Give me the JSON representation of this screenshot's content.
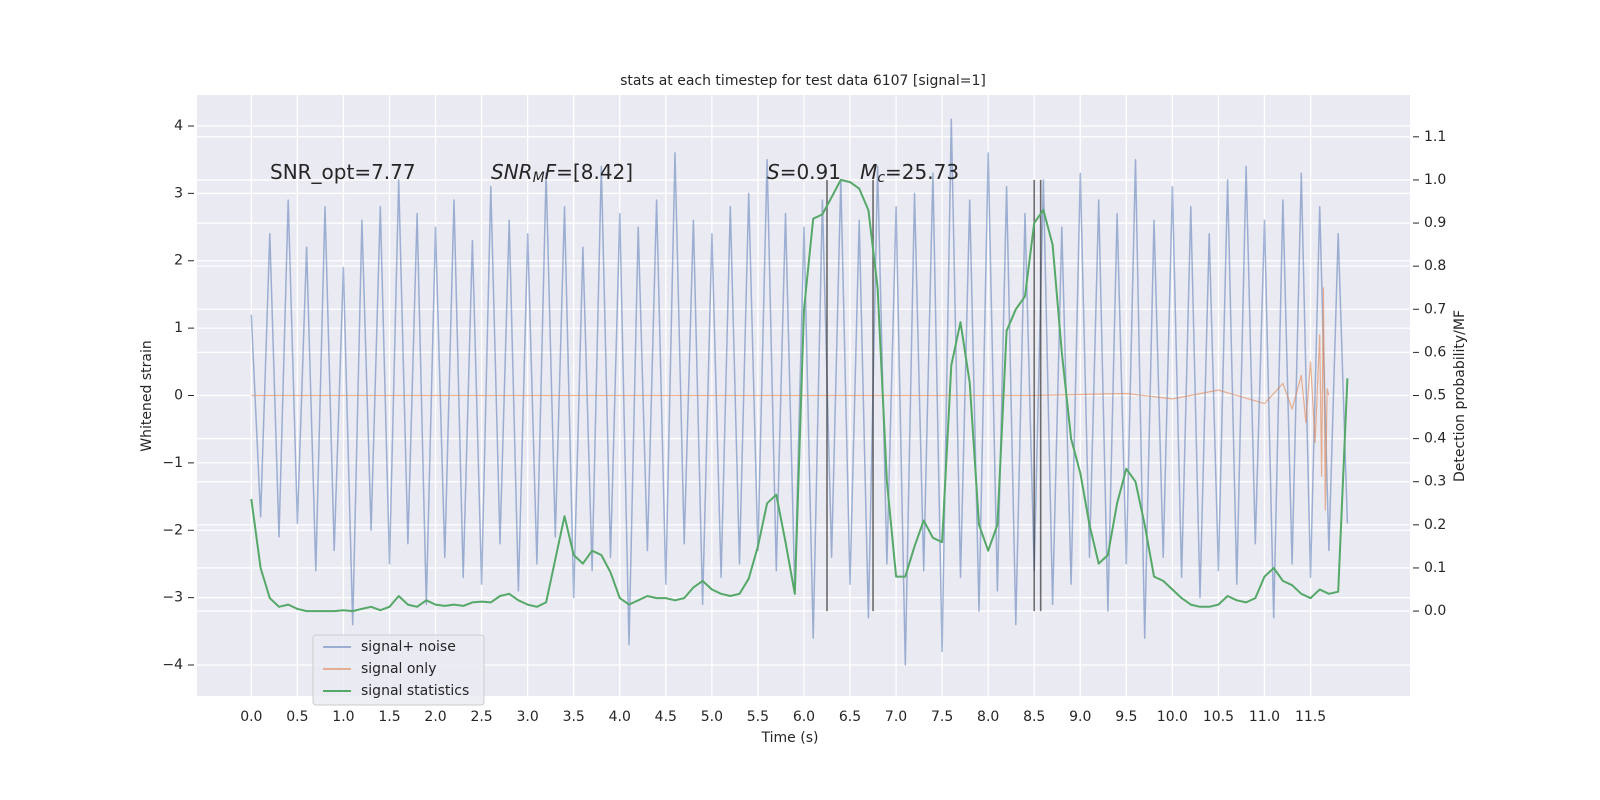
{
  "chart_data": {
    "type": "line",
    "title": "stats at each timestep for test data 6107 [signal=1]",
    "xlabel": "Time (s)",
    "ylabel": "Whitened strain",
    "y2label": "Detection probability/MF",
    "annotations": [
      {
        "segments": [
          {
            "text": "SNR_opt=7.77",
            "style": "normal"
          }
        ]
      },
      {
        "segments": [
          {
            "text": "SNR",
            "style": "italic"
          },
          {
            "text": "M",
            "style": "sub"
          },
          {
            "text": "F",
            "style": "italic"
          },
          {
            "text": "=[8.42]",
            "style": "normal"
          }
        ]
      },
      {
        "segments": [
          {
            "text": "S",
            "style": "italic"
          },
          {
            "text": "=0.91   ",
            "style": "normal"
          },
          {
            "text": "M",
            "style": "italic"
          },
          {
            "text": "c",
            "style": "sub"
          },
          {
            "text": "=25.73",
            "style": "normal"
          }
        ]
      }
    ],
    "x": [
      0.0,
      0.1,
      0.2,
      0.3,
      0.4,
      0.5,
      0.6,
      0.7,
      0.8,
      0.9,
      1.0,
      1.1,
      1.2,
      1.3,
      1.4,
      1.5,
      1.6,
      1.7,
      1.8,
      1.9,
      2.0,
      2.1,
      2.2,
      2.3,
      2.4,
      2.5,
      2.6,
      2.7,
      2.8,
      2.9,
      3.0,
      3.1,
      3.2,
      3.3,
      3.4,
      3.5,
      3.6,
      3.7,
      3.8,
      3.9,
      4.0,
      4.1,
      4.2,
      4.3,
      4.4,
      4.5,
      4.6,
      4.7,
      4.8,
      4.9,
      5.0,
      5.1,
      5.2,
      5.3,
      5.4,
      5.5,
      5.6,
      5.7,
      5.8,
      5.9,
      6.0,
      6.1,
      6.2,
      6.3,
      6.4,
      6.5,
      6.6,
      6.7,
      6.8,
      6.9,
      7.0,
      7.1,
      7.2,
      7.3,
      7.4,
      7.5,
      7.6,
      7.7,
      7.8,
      7.9,
      8.0,
      8.1,
      8.2,
      8.3,
      8.4,
      8.5,
      8.6,
      8.7,
      8.8,
      8.9,
      9.0,
      9.1,
      9.2,
      9.3,
      9.4,
      9.5,
      9.6,
      9.7,
      9.8,
      9.9,
      10.0,
      10.1,
      10.2,
      10.3,
      10.4,
      10.5,
      10.6,
      10.7,
      10.8,
      10.9,
      11.0,
      11.1,
      11.2,
      11.3,
      11.4,
      11.5,
      11.6,
      11.7,
      11.8,
      11.9
    ],
    "series": [
      {
        "name": "signal+ noise",
        "color": "#4c72b0",
        "values": [
          1.2,
          -1.8,
          2.4,
          -2.1,
          2.9,
          -1.9,
          2.2,
          -2.6,
          2.8,
          -2.3,
          1.9,
          -3.4,
          2.6,
          -2.0,
          2.8,
          -2.5,
          3.2,
          -2.2,
          2.7,
          -3.1,
          2.5,
          -2.4,
          2.9,
          -2.7,
          2.3,
          -2.8,
          3.1,
          -2.2,
          2.6,
          -2.9,
          2.4,
          -2.5,
          3.3,
          -2.1,
          2.8,
          -3.0,
          2.2,
          -2.6,
          3.4,
          -2.4,
          2.7,
          -3.7,
          2.5,
          -2.3,
          2.9,
          -2.8,
          3.6,
          -2.2,
          2.6,
          -3.1,
          2.4,
          -2.7,
          2.8,
          -2.5,
          3.0,
          -2.3,
          3.5,
          -2.6,
          2.7,
          -2.9,
          2.5,
          -3.6,
          2.9,
          -2.4,
          3.2,
          -2.8,
          2.6,
          -3.3,
          3.4,
          -2.5,
          2.8,
          -4.0,
          3.0,
          -2.6,
          3.3,
          -3.8,
          4.1,
          -2.7,
          2.9,
          -3.2,
          3.6,
          -2.9,
          3.1,
          -3.4,
          2.7,
          -2.6,
          3.2,
          -3.1,
          2.5,
          -2.8,
          3.3,
          -2.4,
          2.9,
          -3.2,
          2.7,
          -2.5,
          3.5,
          -3.6,
          2.6,
          -2.4,
          3.1,
          -2.7,
          2.8,
          -3.0,
          2.4,
          -2.6,
          3.2,
          -2.8,
          3.4,
          -2.2,
          2.6,
          -3.3,
          2.9,
          -2.5,
          3.3,
          -2.7,
          2.8,
          -2.3,
          2.4,
          -1.9
        ]
      },
      {
        "name": "signal only",
        "color": "#dd8452",
        "x": [
          0.0,
          8.5,
          9.5,
          10.0,
          10.5,
          11.0,
          11.2,
          11.3,
          11.4,
          11.45,
          11.5,
          11.55,
          11.6,
          11.62,
          11.64,
          11.66,
          11.68,
          11.7
        ],
        "values": [
          0,
          0,
          0.03,
          -0.05,
          0.08,
          -0.12,
          0.18,
          -0.2,
          0.3,
          -0.4,
          0.5,
          -0.7,
          0.9,
          -1.2,
          1.6,
          -1.7,
          0.1,
          0
        ]
      },
      {
        "name": "signal statistics",
        "color": "#55a868",
        "axis": "y2",
        "values": [
          0.26,
          0.1,
          0.03,
          0.01,
          0.015,
          0.005,
          0,
          0,
          0,
          0,
          0.002,
          0,
          0.005,
          0.01,
          0.002,
          0.01,
          0.035,
          0.015,
          0.01,
          0.025,
          0.015,
          0.012,
          0.015,
          0.012,
          0.02,
          0.022,
          0.02,
          0.035,
          0.04,
          0.025,
          0.015,
          0.01,
          0.02,
          0.12,
          0.22,
          0.13,
          0.11,
          0.14,
          0.13,
          0.09,
          0.03,
          0.015,
          0.025,
          0.035,
          0.03,
          0.03,
          0.025,
          0.03,
          0.055,
          0.07,
          0.05,
          0.04,
          0.035,
          0.04,
          0.075,
          0.15,
          0.25,
          0.27,
          0.16,
          0.04,
          0.7,
          0.91,
          0.92,
          0.96,
          1.0,
          0.995,
          0.98,
          0.93,
          0.75,
          0.3,
          0.08,
          0.08,
          0.15,
          0.21,
          0.17,
          0.16,
          0.57,
          0.67,
          0.53,
          0.2,
          0.14,
          0.2,
          0.65,
          0.7,
          0.73,
          0.9,
          0.93,
          0.85,
          0.6,
          0.4,
          0.32,
          0.2,
          0.11,
          0.13,
          0.25,
          0.33,
          0.3,
          0.2,
          0.08,
          0.07,
          0.05,
          0.03,
          0.015,
          0.01,
          0.01,
          0.015,
          0.035,
          0.025,
          0.02,
          0.03,
          0.08,
          0.1,
          0.07,
          0.06,
          0.04,
          0.03,
          0.05,
          0.04,
          0.045,
          0.54
        ]
      }
    ],
    "vlines": {
      "x": [
        6.25,
        6.75,
        8.5,
        8.57
      ],
      "ymin": 0,
      "ymax": 1,
      "axis": "y2",
      "color": "#333333"
    },
    "xlim": [
      -0.59,
      12.58
    ],
    "ylim": [
      -4.46,
      4.46
    ],
    "y2lim": [
      -0.197,
      1.197
    ],
    "xticks": [
      {
        "value": 0,
        "label": "0.0"
      },
      0.5,
      {
        "value": 1,
        "label": "1.0"
      },
      1.5,
      {
        "value": 2,
        "label": "2.0"
      },
      2.5,
      {
        "value": 3,
        "label": "3.0"
      },
      3.5,
      {
        "value": 4,
        "label": "4.0"
      },
      4.5,
      {
        "value": 5,
        "label": "5.0"
      },
      5.5,
      {
        "value": 6,
        "label": "6.0"
      },
      6.5,
      {
        "value": 7,
        "label": "7.0"
      },
      7.5,
      {
        "value": 8,
        "label": "8.0"
      },
      8.5,
      {
        "value": 9,
        "label": "9.0"
      },
      9.5,
      {
        "value": 10,
        "label": "10.0"
      },
      10.5,
      {
        "value": 11,
        "label": "11.0"
      },
      11.5
    ],
    "yticks": [
      {
        "value": -4,
        "label": "−4"
      },
      {
        "value": -3,
        "label": "−3"
      },
      {
        "value": -2,
        "label": "−2"
      },
      {
        "value": -1,
        "label": "−1"
      },
      0,
      1,
      2,
      3,
      4
    ],
    "y2ticks": [
      {
        "value": 0,
        "label": "0.0"
      },
      0.1,
      0.2,
      0.3,
      0.4,
      0.5,
      0.6,
      0.7,
      0.8,
      0.9,
      {
        "value": 1,
        "label": "1.0"
      },
      1.1
    ],
    "grid": true,
    "legend": "lower left"
  }
}
